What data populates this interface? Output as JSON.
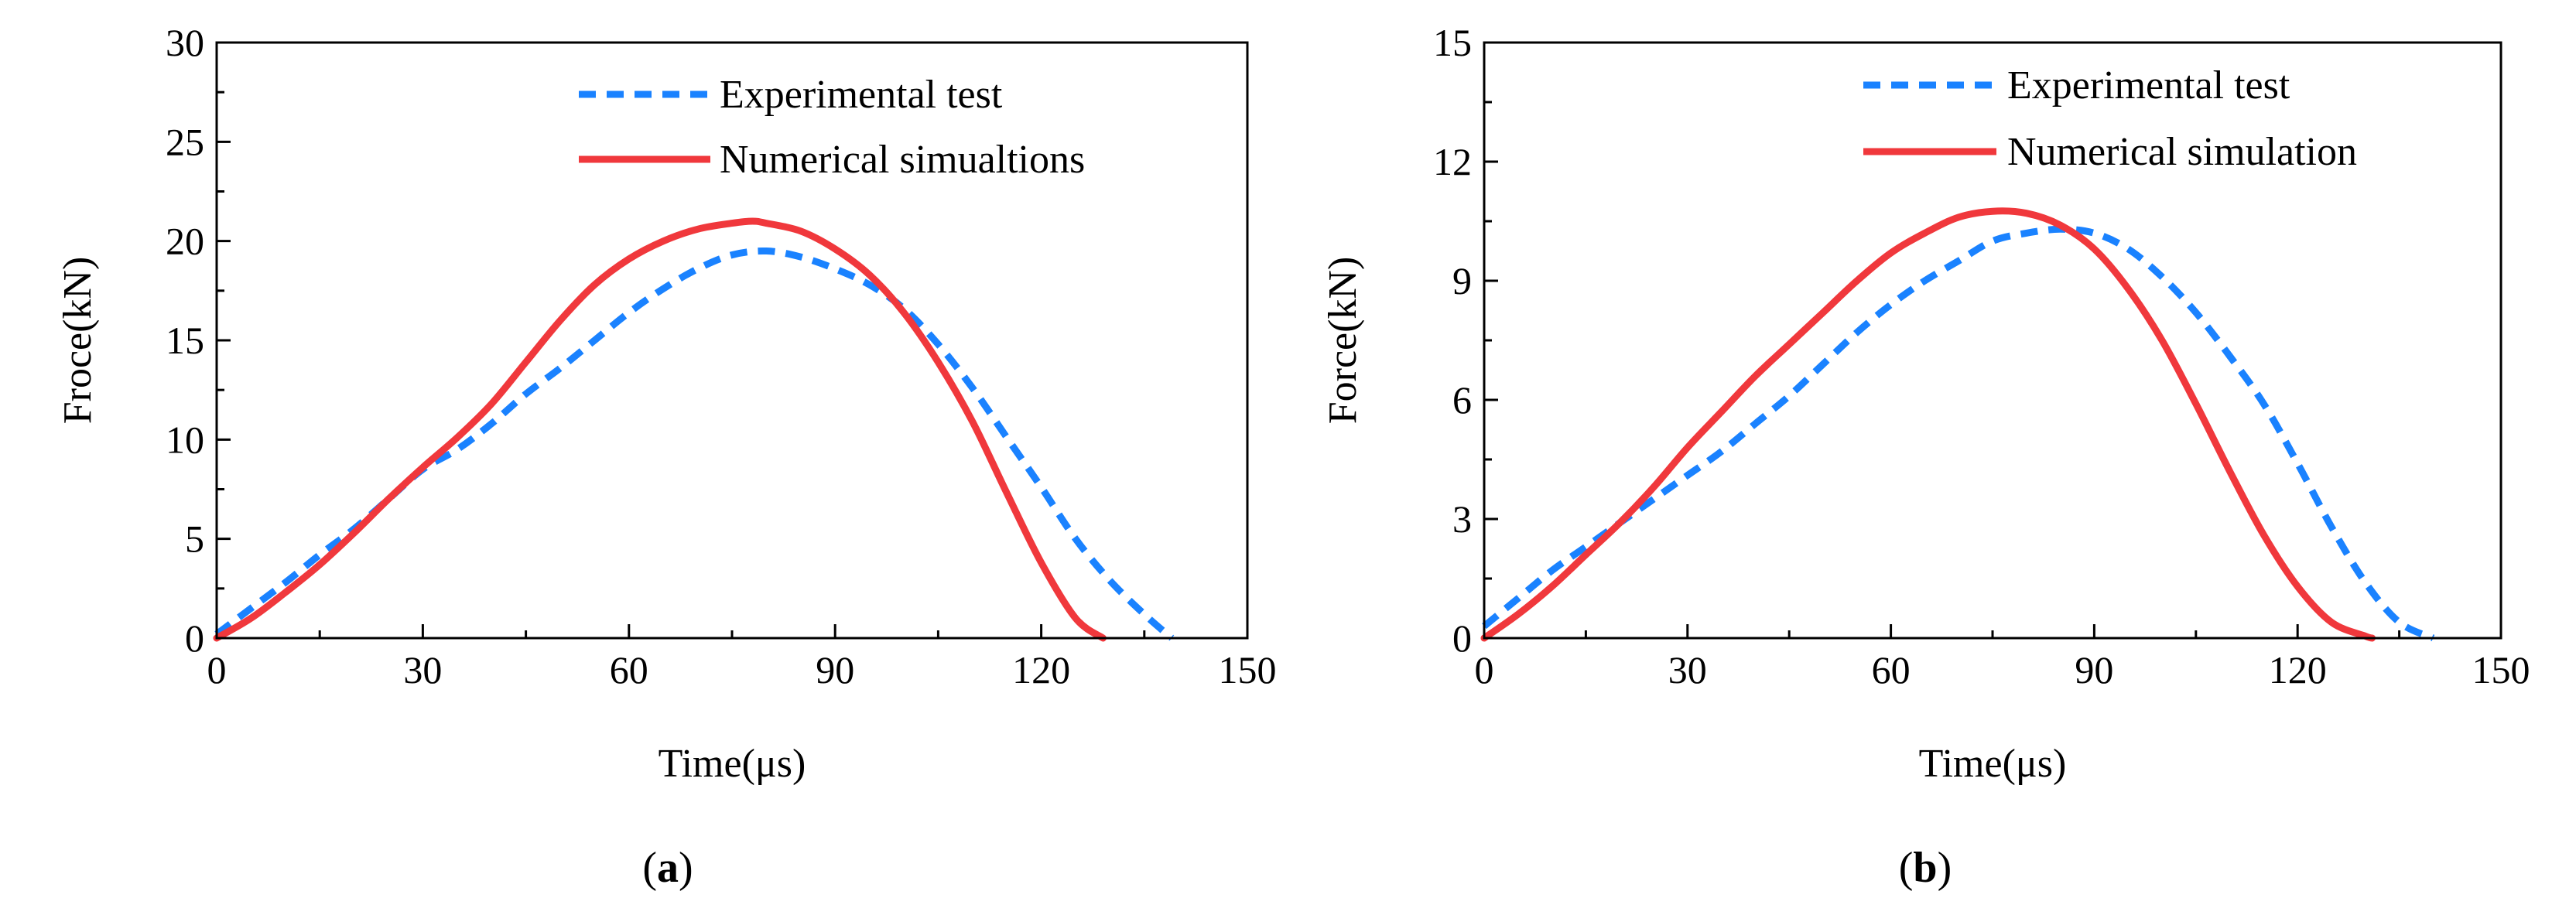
{
  "chart_data": [
    {
      "panel": "(a)",
      "panel_letter": "a",
      "type": "line",
      "title": "",
      "xlabel": "Time(μs)",
      "ylabel": "Froce(kN)",
      "xlim": [
        0,
        150
      ],
      "ylim": [
        0,
        30
      ],
      "xticks": [
        0,
        30,
        60,
        90,
        120,
        150
      ],
      "yticks": [
        0,
        5,
        10,
        15,
        20,
        25,
        30
      ],
      "legend_position": "top-right",
      "series": [
        {
          "name": "Experimental test",
          "style": "dashed",
          "color": "#1a82ff",
          "x": [
            0,
            5,
            10,
            15,
            20,
            25,
            30,
            35,
            40,
            45,
            50,
            55,
            60,
            65,
            70,
            75,
            80,
            85,
            90,
            95,
            100,
            105,
            110,
            115,
            120,
            125,
            130,
            135,
            139
          ],
          "y": [
            0.2,
            1.5,
            2.8,
            4.2,
            5.5,
            7.0,
            8.5,
            9.5,
            10.8,
            12.3,
            13.6,
            15.0,
            16.4,
            17.6,
            18.6,
            19.3,
            19.5,
            19.2,
            18.6,
            17.8,
            16.6,
            14.8,
            12.6,
            10.1,
            7.6,
            5.0,
            2.9,
            1.2,
            0.0
          ]
        },
        {
          "name": "Numerical simualtions",
          "style": "solid",
          "color": "#f0383c",
          "x": [
            0,
            5,
            10,
            15,
            20,
            25,
            30,
            35,
            40,
            45,
            50,
            55,
            60,
            65,
            70,
            75,
            78,
            80,
            85,
            90,
            95,
            100,
            105,
            110,
            115,
            120,
            125,
            129
          ],
          "y": [
            0.0,
            1.0,
            2.3,
            3.7,
            5.3,
            7.0,
            8.6,
            10.1,
            11.8,
            13.9,
            16.0,
            17.8,
            19.1,
            20.0,
            20.6,
            20.9,
            21.0,
            20.9,
            20.5,
            19.6,
            18.3,
            16.4,
            13.9,
            10.9,
            7.3,
            3.8,
            1.0,
            0.0
          ]
        }
      ]
    },
    {
      "panel": "(b)",
      "panel_letter": "b",
      "type": "line",
      "title": "",
      "xlabel": "Time(μs)",
      "ylabel": "Force(kN)",
      "xlim": [
        0,
        150
      ],
      "ylim": [
        0,
        15
      ],
      "xticks": [
        0,
        30,
        60,
        90,
        120,
        150
      ],
      "yticks": [
        0,
        3,
        6,
        9,
        12,
        15
      ],
      "legend_position": "top-right",
      "series": [
        {
          "name": "Experimental test",
          "style": "dashed",
          "color": "#1a82ff",
          "x": [
            0,
            5,
            10,
            15,
            20,
            25,
            30,
            35,
            40,
            45,
            50,
            55,
            60,
            65,
            70,
            75,
            80,
            85,
            90,
            95,
            100,
            105,
            110,
            115,
            120,
            125,
            130,
            135,
            140
          ],
          "y": [
            0.3,
            1.0,
            1.7,
            2.3,
            2.9,
            3.5,
            4.1,
            4.7,
            5.4,
            6.1,
            6.9,
            7.7,
            8.4,
            9.0,
            9.5,
            10.0,
            10.2,
            10.3,
            10.2,
            9.8,
            9.1,
            8.2,
            7.1,
            5.9,
            4.4,
            2.8,
            1.4,
            0.4,
            0.0
          ]
        },
        {
          "name": "Numerical simulation",
          "style": "solid",
          "color": "#f0383c",
          "x": [
            0,
            5,
            10,
            15,
            20,
            25,
            30,
            35,
            40,
            45,
            50,
            55,
            60,
            65,
            70,
            75,
            80,
            85,
            90,
            95,
            100,
            105,
            110,
            115,
            120,
            125,
            130,
            131
          ],
          "y": [
            0.0,
            0.6,
            1.3,
            2.1,
            2.9,
            3.8,
            4.8,
            5.7,
            6.6,
            7.4,
            8.2,
            9.0,
            9.7,
            10.2,
            10.6,
            10.75,
            10.7,
            10.4,
            9.8,
            8.8,
            7.5,
            5.9,
            4.2,
            2.6,
            1.3,
            0.4,
            0.05,
            0.0
          ]
        }
      ]
    }
  ]
}
